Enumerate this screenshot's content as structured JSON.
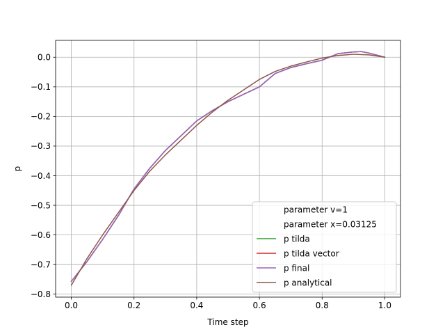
{
  "chart_data": {
    "type": "line",
    "title": "",
    "xlabel": "Time step",
    "ylabel": "p",
    "xlim": [
      -0.05,
      1.05
    ],
    "ylim": [
      -0.81,
      0.057
    ],
    "xticks": [
      0.0,
      0.2,
      0.4,
      0.6,
      0.8,
      1.0
    ],
    "xtick_labels": [
      "0.0",
      "0.2",
      "0.4",
      "0.6",
      "0.8",
      "1.0"
    ],
    "yticks": [
      0.0,
      -0.1,
      -0.2,
      -0.3,
      -0.4,
      -0.5,
      -0.6,
      -0.7,
      -0.8
    ],
    "ytick_labels": [
      "0.0",
      "−0.1",
      "−0.2",
      "−0.3",
      "−0.4",
      "−0.5",
      "−0.6",
      "−0.7",
      "−0.8"
    ],
    "grid": true,
    "legend_position": "lower-right",
    "legend": [
      {
        "label": "parameter v=1",
        "color": null
      },
      {
        "label": "parameter x=0.03125",
        "color": null
      },
      {
        "label": "p tilda",
        "color": "#2ca02c"
      },
      {
        "label": "p tilda vector",
        "color": "#d62728"
      },
      {
        "label": "p final",
        "color": "#9467bd"
      },
      {
        "label": "p analytical",
        "color": "#8c564b"
      }
    ],
    "series": [
      {
        "name": "p tilda",
        "color": "#2ca02c",
        "x": [
          0.0,
          0.05,
          0.1,
          0.15,
          0.2,
          0.25,
          0.3,
          0.35,
          0.4,
          0.45,
          0.5,
          0.55,
          0.6,
          0.65,
          0.7,
          0.75,
          0.8,
          0.85,
          0.9,
          0.925,
          0.95,
          1.0
        ],
        "y": [
          -0.757,
          -0.69,
          -0.615,
          -0.535,
          -0.445,
          -0.375,
          -0.315,
          -0.265,
          -0.215,
          -0.18,
          -0.15,
          -0.125,
          -0.1,
          -0.055,
          -0.035,
          -0.022,
          -0.01,
          0.012,
          0.018,
          0.019,
          0.014,
          0.0
        ]
      },
      {
        "name": "p tilda vector",
        "color": "#d62728",
        "x": [
          0.0,
          0.05,
          0.1,
          0.15,
          0.2,
          0.25,
          0.3,
          0.35,
          0.4,
          0.45,
          0.5,
          0.55,
          0.6,
          0.65,
          0.7,
          0.75,
          0.8,
          0.85,
          0.9,
          0.925,
          0.95,
          1.0
        ],
        "y": [
          -0.757,
          -0.69,
          -0.615,
          -0.535,
          -0.445,
          -0.375,
          -0.315,
          -0.265,
          -0.215,
          -0.18,
          -0.15,
          -0.125,
          -0.1,
          -0.055,
          -0.035,
          -0.022,
          -0.01,
          0.012,
          0.018,
          0.019,
          0.014,
          0.0
        ]
      },
      {
        "name": "p final",
        "color": "#9467bd",
        "x": [
          0.0,
          0.05,
          0.1,
          0.15,
          0.2,
          0.25,
          0.3,
          0.35,
          0.4,
          0.45,
          0.5,
          0.55,
          0.6,
          0.65,
          0.7,
          0.75,
          0.8,
          0.85,
          0.9,
          0.925,
          0.95,
          1.0
        ],
        "y": [
          -0.757,
          -0.69,
          -0.615,
          -0.535,
          -0.445,
          -0.375,
          -0.315,
          -0.265,
          -0.215,
          -0.18,
          -0.15,
          -0.125,
          -0.1,
          -0.055,
          -0.035,
          -0.022,
          -0.01,
          0.012,
          0.018,
          0.019,
          0.014,
          0.0
        ]
      },
      {
        "name": "p analytical",
        "color": "#8c564b",
        "x": [
          0.0,
          0.05,
          0.1,
          0.15,
          0.2,
          0.25,
          0.3,
          0.35,
          0.4,
          0.45,
          0.5,
          0.55,
          0.6,
          0.65,
          0.7,
          0.75,
          0.8,
          0.85,
          0.9,
          0.95,
          1.0
        ],
        "y": [
          -0.77,
          -0.68,
          -0.6,
          -0.525,
          -0.45,
          -0.385,
          -0.33,
          -0.28,
          -0.23,
          -0.185,
          -0.145,
          -0.11,
          -0.075,
          -0.048,
          -0.03,
          -0.016,
          -0.003,
          0.006,
          0.01,
          0.008,
          0.0
        ]
      }
    ]
  }
}
